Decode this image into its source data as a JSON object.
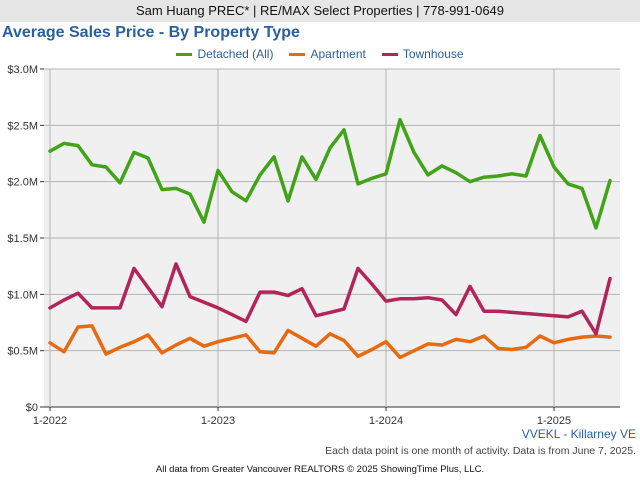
{
  "header": {
    "text": "Sam Huang PREC* | RE/MAX Select Properties | 778-991-0649"
  },
  "colors": {
    "header_bg": "#e6e6e6",
    "title": "#2a5fa0",
    "plot_bg": "#f0f0f0",
    "grid": "#b4b4b4"
  },
  "chart_data": {
    "type": "line",
    "title": "Average Sales Price - By Property Type",
    "xlabel": "",
    "ylabel": "",
    "ylim": [
      0,
      3000000
    ],
    "yticks": [
      0,
      500000,
      1000000,
      1500000,
      2000000,
      2500000,
      3000000
    ],
    "ytick_labels": [
      "$0",
      "$0.5M",
      "$1.0M",
      "$1.5M",
      "$2.0M",
      "$2.5M",
      "$3.0M"
    ],
    "xticks": [
      "1-2022",
      "1-2023",
      "1-2024",
      "1-2025"
    ],
    "x_first": "1-2022",
    "x_last": "5-2025",
    "grid": true,
    "legend_position": "top-center",
    "series": [
      {
        "name": "Detached (All)",
        "color": "#41a317",
        "values": [
          2270000,
          2340000,
          2320000,
          2150000,
          2130000,
          1990000,
          2260000,
          2210000,
          1930000,
          1940000,
          1890000,
          1640000,
          2100000,
          1910000,
          1830000,
          2060000,
          2220000,
          1830000,
          2220000,
          2020000,
          2300000,
          2460000,
          1980000,
          2030000,
          2070000,
          2550000,
          2260000,
          2060000,
          2140000,
          2080000,
          2000000,
          2040000,
          2050000,
          2070000,
          2050000,
          2410000,
          2130000,
          1980000,
          1940000,
          1590000,
          2010000
        ]
      },
      {
        "name": "Apartment",
        "color": "#e86a10",
        "values": [
          570000,
          490000,
          710000,
          720000,
          470000,
          530000,
          580000,
          640000,
          480000,
          550000,
          610000,
          540000,
          580000,
          610000,
          640000,
          490000,
          480000,
          680000,
          610000,
          540000,
          650000,
          590000,
          450000,
          510000,
          580000,
          440000,
          500000,
          560000,
          550000,
          600000,
          580000,
          630000,
          520000,
          510000,
          530000,
          630000,
          570000,
          600000,
          620000,
          630000,
          620000
        ]
      },
      {
        "name": "Townhouse",
        "color": "#b3255a",
        "values": [
          880000,
          950000,
          1010000,
          880000,
          880000,
          880000,
          1230000,
          1060000,
          890000,
          1270000,
          980000,
          930000,
          880000,
          820000,
          760000,
          1020000,
          1020000,
          990000,
          1050000,
          810000,
          840000,
          870000,
          1230000,
          1090000,
          940000,
          960000,
          960000,
          970000,
          950000,
          820000,
          1070000,
          850000,
          850000,
          840000,
          830000,
          820000,
          810000,
          800000,
          850000,
          650000,
          1140000
        ]
      }
    ]
  },
  "footer": {
    "source": "VVEKL - Killarney VE",
    "note": "Each data point is one month of activity. Data is from June 7, 2025.",
    "credit": "All data from Greater Vancouver REALTORS © 2025 ShowingTime Plus, LLC."
  }
}
